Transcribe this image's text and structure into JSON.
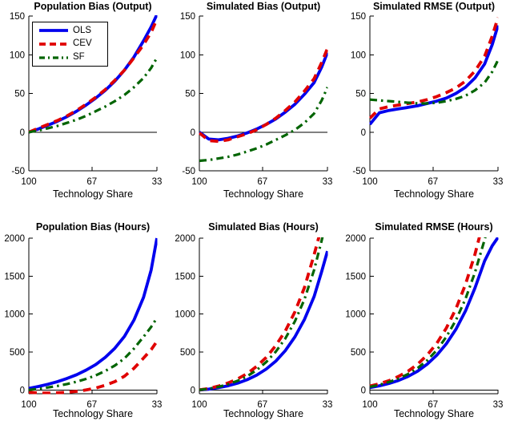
{
  "figure": {
    "background": "#ffffff"
  },
  "accent_colors": {
    "ols": "#0000EE",
    "cev": "#E00000",
    "sf": "#006400"
  },
  "chart_data": [
    {
      "type": "line",
      "title": "Population Bias (Output)",
      "xlabel": "Technology Share",
      "xlim": [
        100,
        33
      ],
      "xticks": [
        100,
        67,
        33
      ],
      "ylim": [
        -50,
        150
      ],
      "yticks": [
        -50,
        0,
        50,
        100,
        150
      ],
      "zero_line": true,
      "legend_position": "top-left",
      "x": [
        100,
        95,
        90,
        85,
        80,
        75,
        70,
        65,
        60,
        55,
        50,
        45,
        40,
        36,
        33
      ],
      "series": [
        {
          "name": "OLS",
          "color": "#0000EE",
          "style": "solid",
          "values": [
            0,
            4,
            9,
            14,
            20,
            27,
            35,
            44,
            54,
            66,
            80,
            97,
            118,
            136,
            152
          ]
        },
        {
          "name": "CEV",
          "color": "#E00000",
          "style": "dashed",
          "values": [
            0,
            5,
            10,
            15,
            21,
            28,
            36,
            45,
            55,
            67,
            80,
            96,
            113,
            129,
            146
          ]
        },
        {
          "name": "SF",
          "color": "#006400",
          "style": "dashdot",
          "values": [
            0,
            2,
            5,
            8,
            12,
            16,
            21,
            27,
            33,
            40,
            48,
            58,
            70,
            83,
            96
          ]
        }
      ]
    },
    {
      "type": "line",
      "title": "Simulated Bias (Output)",
      "xlabel": "Technology Share",
      "xlim": [
        100,
        33
      ],
      "xticks": [
        100,
        67,
        33
      ],
      "ylim": [
        -50,
        150
      ],
      "yticks": [
        -50,
        0,
        50,
        100,
        150
      ],
      "zero_line": true,
      "x": [
        100,
        95,
        90,
        85,
        80,
        75,
        70,
        65,
        60,
        55,
        50,
        45,
        40,
        36,
        33
      ],
      "series": [
        {
          "name": "OLS",
          "color": "#0000EE",
          "style": "solid",
          "values": [
            0,
            -9,
            -10,
            -8,
            -5,
            -1,
            4,
            10,
            17,
            26,
            36,
            49,
            64,
            84,
            103
          ]
        },
        {
          "name": "CEV",
          "color": "#E00000",
          "style": "dashed",
          "values": [
            -1,
            -11,
            -12,
            -10,
            -6,
            -2,
            3,
            10,
            18,
            28,
            39,
            53,
            69,
            90,
            108
          ]
        },
        {
          "name": "SF",
          "color": "#006400",
          "style": "dashdot",
          "values": [
            -37,
            -36,
            -34,
            -32,
            -29,
            -25,
            -21,
            -16,
            -10,
            -4,
            3,
            12,
            24,
            41,
            58
          ]
        }
      ]
    },
    {
      "type": "line",
      "title": "Simulated RMSE (Output)",
      "xlabel": "Technology Share",
      "xlim": [
        100,
        33
      ],
      "xticks": [
        100,
        67,
        33
      ],
      "ylim": [
        -50,
        150
      ],
      "yticks": [
        -50,
        0,
        50,
        100,
        150
      ],
      "zero_line": false,
      "x": [
        100,
        95,
        90,
        85,
        80,
        75,
        70,
        65,
        60,
        55,
        50,
        45,
        40,
        36,
        33
      ],
      "series": [
        {
          "name": "OLS",
          "color": "#0000EE",
          "style": "solid",
          "values": [
            10,
            25,
            28,
            30,
            32,
            34,
            37,
            40,
            44,
            50,
            58,
            70,
            88,
            113,
            138
          ]
        },
        {
          "name": "CEV",
          "color": "#E00000",
          "style": "dashed",
          "values": [
            18,
            30,
            33,
            35,
            37,
            39,
            42,
            46,
            51,
            57,
            66,
            79,
            98,
            124,
            148
          ]
        },
        {
          "name": "SF",
          "color": "#006400",
          "style": "dashdot",
          "values": [
            42,
            41,
            40,
            39,
            38,
            37,
            37,
            38,
            40,
            43,
            47,
            54,
            64,
            78,
            93
          ]
        }
      ]
    },
    {
      "type": "line",
      "title": "Population Bias (Hours)",
      "xlabel": "Technology Share",
      "xlim": [
        100,
        33
      ],
      "xticks": [
        100,
        67,
        33
      ],
      "ylim": [
        -50,
        2000
      ],
      "yticks": [
        0,
        500,
        1000,
        1500,
        2000
      ],
      "zero_line": true,
      "x": [
        100,
        95,
        90,
        85,
        80,
        75,
        70,
        65,
        60,
        55,
        50,
        45,
        40,
        36,
        33
      ],
      "series": [
        {
          "name": "OLS",
          "color": "#0000EE",
          "style": "solid",
          "values": [
            20,
            45,
            75,
            110,
            152,
            200,
            262,
            335,
            430,
            550,
            705,
            920,
            1220,
            1580,
            2000
          ]
        },
        {
          "name": "CEV",
          "color": "#E00000",
          "style": "dashed",
          "values": [
            -30,
            -40,
            -42,
            -38,
            -30,
            -18,
            0,
            25,
            62,
            110,
            180,
            285,
            420,
            530,
            640
          ]
        },
        {
          "name": "SF",
          "color": "#006400",
          "style": "dashdot",
          "values": [
            0,
            15,
            32,
            52,
            78,
            108,
            145,
            192,
            250,
            322,
            415,
            545,
            700,
            830,
            950
          ]
        }
      ]
    },
    {
      "type": "line",
      "title": "Simulated Bias (Hours)",
      "xlabel": "Technology Share",
      "xlim": [
        100,
        33
      ],
      "xticks": [
        100,
        67,
        33
      ],
      "ylim": [
        -50,
        2000
      ],
      "yticks": [
        0,
        500,
        1000,
        1500,
        2000
      ],
      "zero_line": true,
      "x": [
        100,
        95,
        90,
        85,
        80,
        75,
        70,
        65,
        60,
        55,
        50,
        45,
        40,
        36,
        33
      ],
      "series": [
        {
          "name": "OLS",
          "color": "#0000EE",
          "style": "solid",
          "values": [
            0,
            10,
            30,
            55,
            90,
            135,
            195,
            275,
            380,
            520,
            700,
            930,
            1230,
            1560,
            1830
          ]
        },
        {
          "name": "CEV",
          "color": "#E00000",
          "style": "dashed",
          "values": [
            0,
            20,
            50,
            92,
            145,
            215,
            310,
            430,
            585,
            780,
            1030,
            1350,
            1780,
            2150,
            2500
          ]
        },
        {
          "name": "SF",
          "color": "#006400",
          "style": "dashdot",
          "values": [
            0,
            15,
            40,
            75,
            120,
            180,
            262,
            368,
            505,
            680,
            905,
            1195,
            1580,
            1970,
            2300
          ]
        }
      ]
    },
    {
      "type": "line",
      "title": "Simulated RMSE (Hours)",
      "xlabel": "Technology Share",
      "xlim": [
        100,
        33
      ],
      "xticks": [
        100,
        67,
        33
      ],
      "ylim": [
        -50,
        2000
      ],
      "yticks": [
        0,
        500,
        1000,
        1500,
        2000
      ],
      "zero_line": true,
      "x": [
        100,
        95,
        90,
        85,
        80,
        75,
        70,
        65,
        60,
        55,
        50,
        45,
        40,
        36,
        33
      ],
      "series": [
        {
          "name": "OLS",
          "color": "#0000EE",
          "style": "solid",
          "values": [
            30,
            55,
            85,
            125,
            178,
            248,
            340,
            458,
            608,
            800,
            1040,
            1345,
            1700,
            1900,
            2010
          ]
        },
        {
          "name": "CEV",
          "color": "#E00000",
          "style": "dashed",
          "values": [
            50,
            82,
            122,
            178,
            248,
            340,
            460,
            615,
            815,
            1070,
            1390,
            1790,
            2280,
            2700,
            3000
          ]
        },
        {
          "name": "SF",
          "color": "#006400",
          "style": "dashdot",
          "values": [
            40,
            68,
            104,
            150,
            210,
            288,
            390,
            525,
            700,
            920,
            1200,
            1550,
            1980,
            2350,
            2650
          ]
        }
      ]
    }
  ]
}
